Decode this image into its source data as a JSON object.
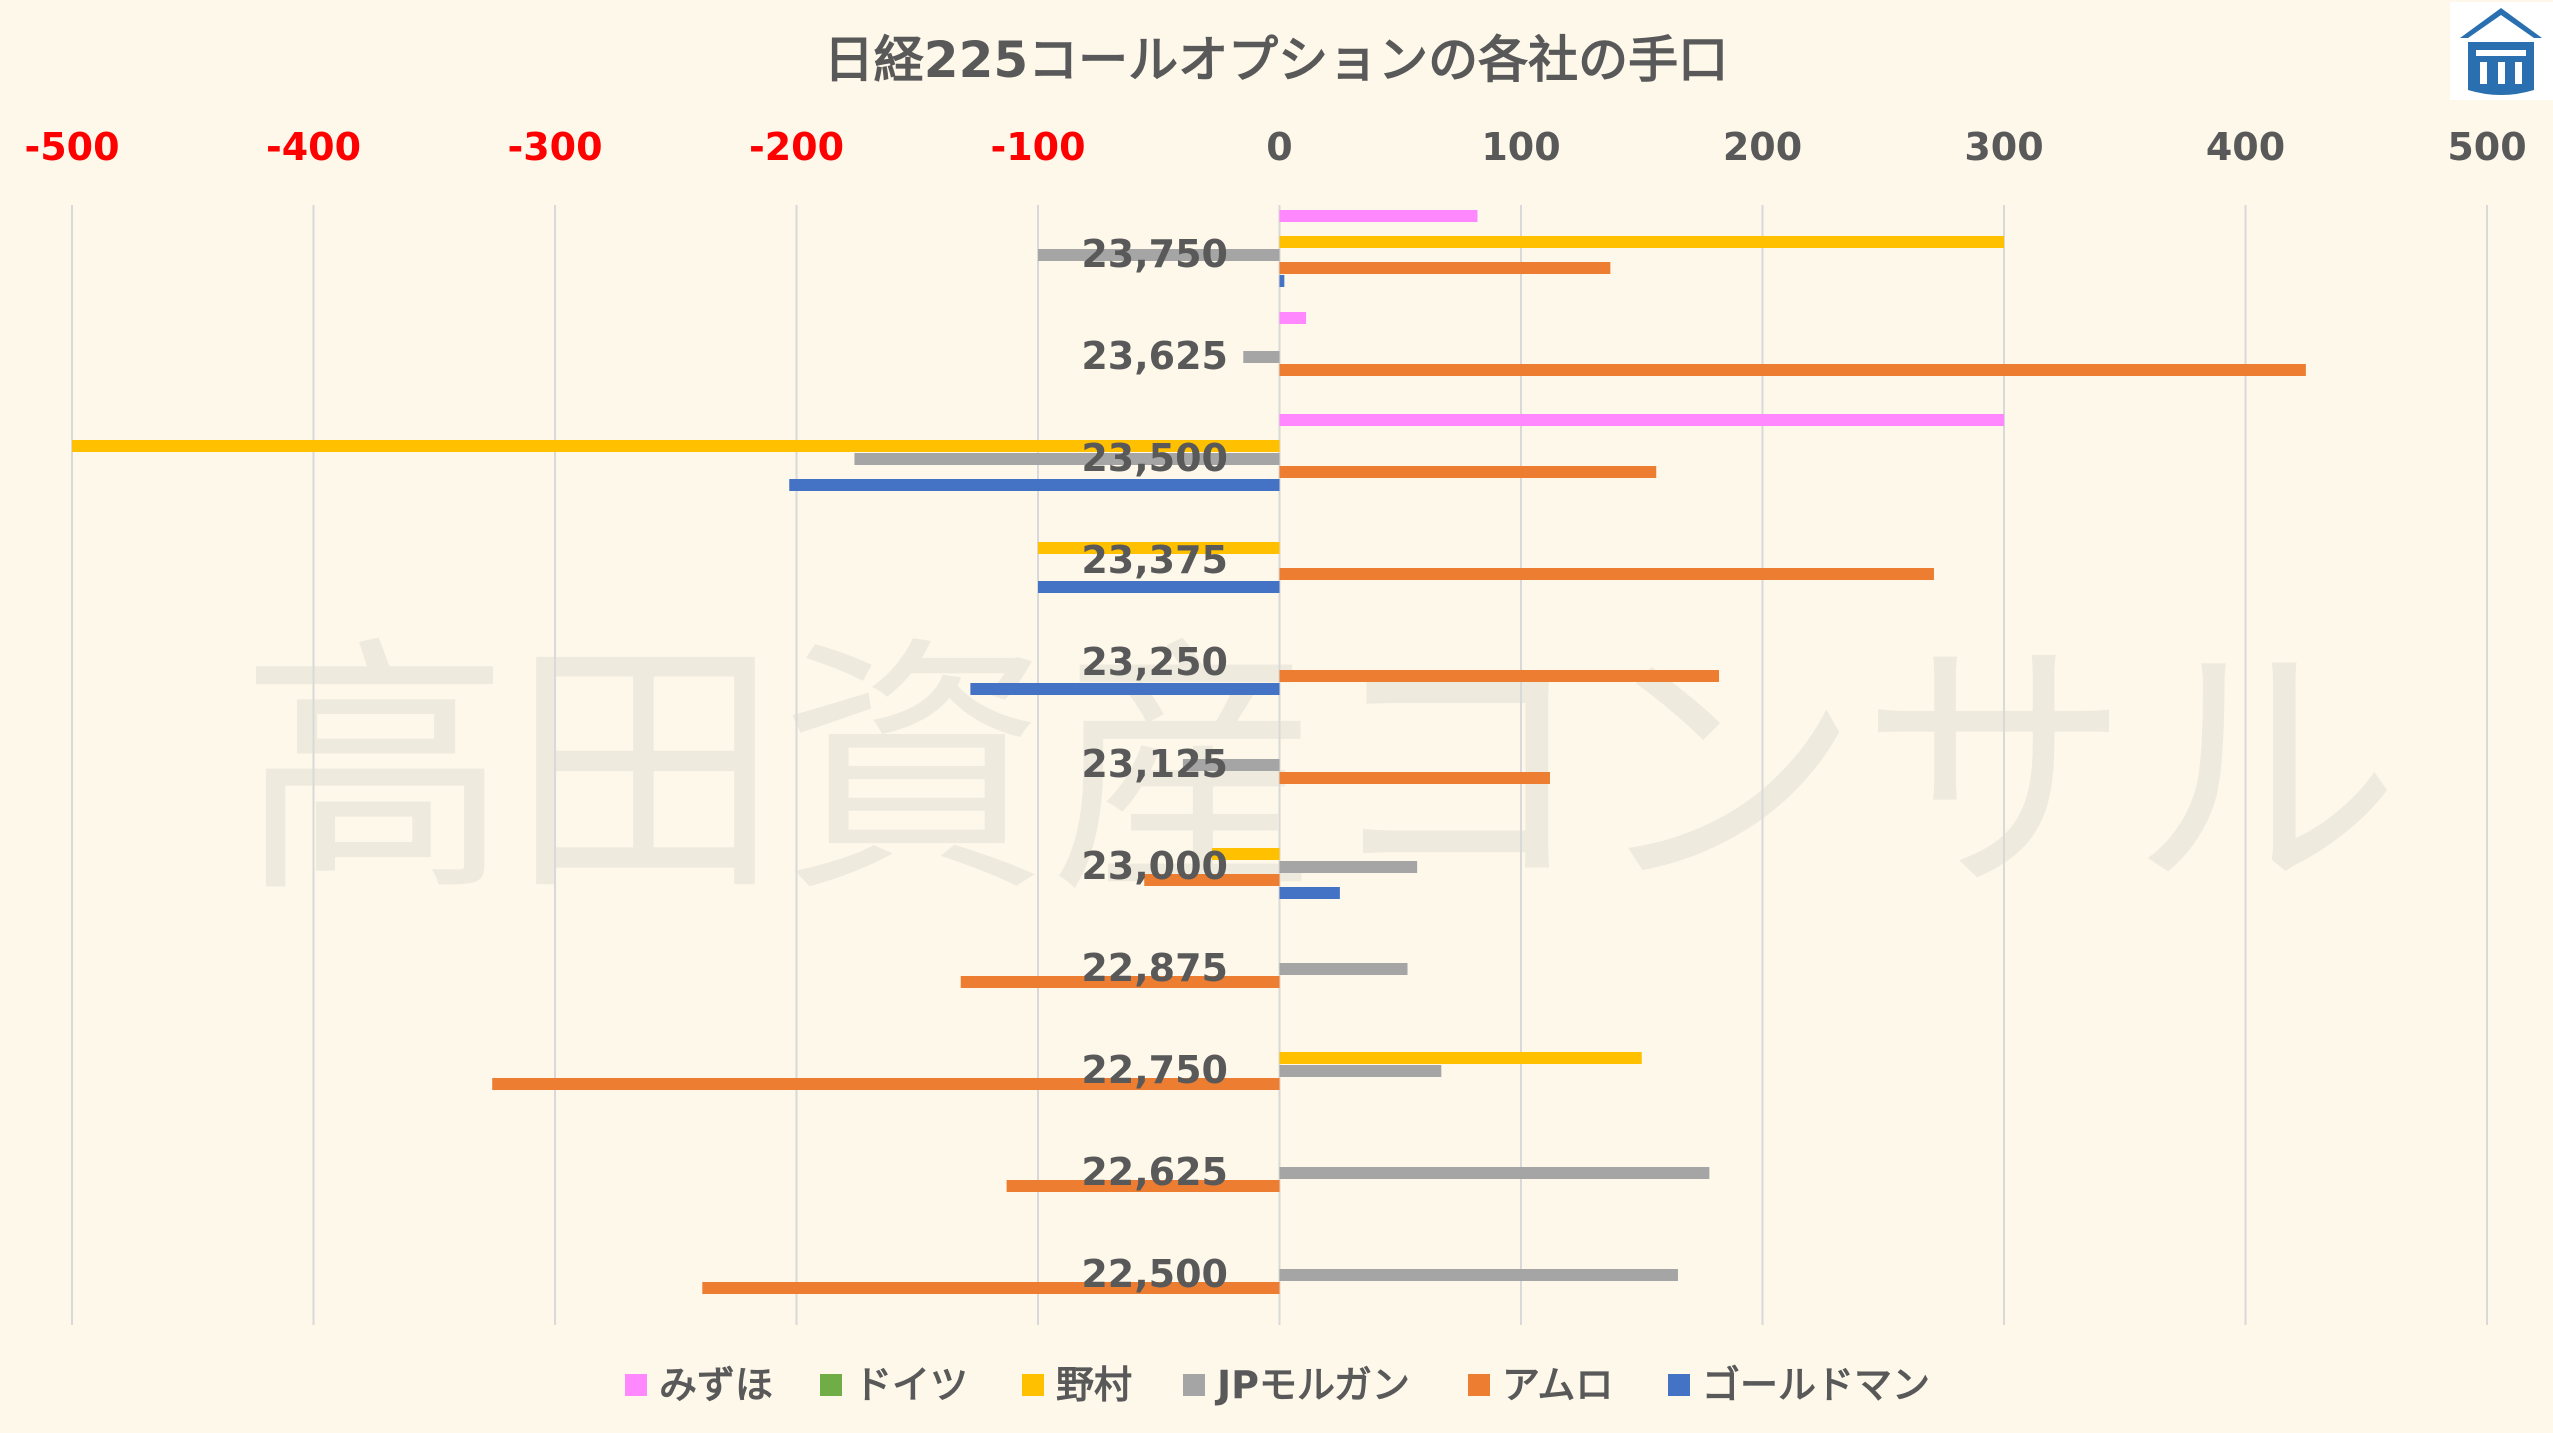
{
  "logo": {
    "name": "takata-logo",
    "color": "#2a6fb0"
  },
  "watermark": "高田資産コンサル",
  "chart_data": {
    "type": "bar",
    "orientation": "horizontal",
    "title": "日経225コールオプションの各社の手口",
    "xlim": [
      -500,
      500
    ],
    "x_ticks": [
      -500,
      -400,
      -300,
      -200,
      -100,
      0,
      100,
      200,
      300,
      400,
      500
    ],
    "x_tick_labels": [
      "-500",
      "-400",
      "-300",
      "-200",
      "-100",
      "0",
      "100",
      "200",
      "300",
      "400",
      "500"
    ],
    "negative_tick_color": "#ff0000",
    "positive_tick_color": "#595959",
    "grid": true,
    "legend_position": "bottom",
    "categories": [
      "23,750",
      "23,625",
      "23,500",
      "23,375",
      "23,250",
      "23,125",
      "23,000",
      "22,875",
      "22,750",
      "22,625",
      "22,500"
    ],
    "series": [
      {
        "name": "みずほ",
        "color": "#ff88ff",
        "values": [
          82,
          11,
          300,
          0,
          0,
          0,
          0,
          0,
          0,
          0,
          0
        ]
      },
      {
        "name": "ドイツ",
        "color": "#70ad47",
        "values": [
          0,
          0,
          0,
          0,
          0,
          0,
          0,
          0,
          0,
          0,
          0
        ]
      },
      {
        "name": "野村",
        "color": "#ffc000",
        "values": [
          300,
          0,
          -500,
          -100,
          0,
          0,
          -28,
          0,
          150,
          0,
          0
        ]
      },
      {
        "name": "JPモルガン",
        "color": "#a5a5a5",
        "values": [
          -100,
          -15,
          -176,
          0,
          0,
          -40,
          57,
          53,
          67,
          178,
          165
        ]
      },
      {
        "name": "アムロ",
        "color": "#ed7d31",
        "values": [
          137,
          425,
          156,
          271,
          182,
          112,
          -56,
          -132,
          -326,
          -113,
          -239
        ]
      },
      {
        "name": "ゴールドマン",
        "color": "#4472c4",
        "values": [
          2,
          0,
          -203,
          -100,
          -128,
          0,
          25,
          0,
          0,
          0,
          0
        ]
      }
    ]
  }
}
